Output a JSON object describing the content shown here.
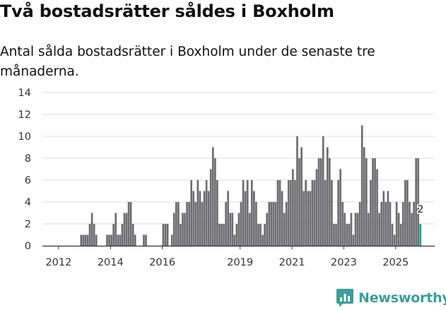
{
  "header": {
    "title": "Två bostadsrätter såldes i Boxholm",
    "subtitle": "Antal sålda bostadsrätter i Boxholm under de senaste tre månaderna."
  },
  "brand": {
    "name": "Newsworthy",
    "logo_icon": "chart-bubble-icon",
    "color": "#3d9c99"
  },
  "colors": {
    "bar": "#6c6b70",
    "highlight": "#1a9e95",
    "grid": "#dddddd",
    "axis": "#333333"
  },
  "chart_data": {
    "type": "bar",
    "title": "Två bostadsrätter såldes i Boxholm",
    "subtitle": "Antal sålda bostadsrätter i Boxholm under de senaste tre månaderna.",
    "xlabel": "",
    "ylabel": "",
    "x_unit": "month",
    "start": "2011-07",
    "ylim": [
      0,
      14
    ],
    "yticks": [
      0,
      2,
      4,
      6,
      8,
      10,
      12,
      14
    ],
    "xticks": [
      {
        "label": "2012",
        "month_index": 7
      },
      {
        "label": "2014",
        "month_index": 31
      },
      {
        "label": "2016",
        "month_index": 55
      },
      {
        "label": "2019",
        "month_index": 91
      },
      {
        "label": "2021",
        "month_index": 115
      },
      {
        "label": "2023",
        "month_index": 139
      },
      {
        "label": "2025",
        "month_index": 163
      }
    ],
    "grid": true,
    "highlight_label": "2",
    "values": [
      0,
      0,
      0,
      0,
      0,
      0,
      0,
      0,
      0,
      0,
      0,
      0,
      0,
      0,
      0,
      0,
      0,
      1,
      1,
      1,
      1,
      2,
      3,
      2,
      1,
      0,
      0,
      0,
      0,
      1,
      1,
      1,
      2,
      3,
      1,
      1,
      2,
      3,
      3,
      4,
      4,
      2,
      1,
      0,
      0,
      0,
      1,
      1,
      0,
      0,
      0,
      0,
      0,
      0,
      0,
      2,
      2,
      2,
      0,
      1,
      3,
      4,
      4,
      2,
      3,
      3,
      4,
      4,
      6,
      5,
      4,
      6,
      5,
      4,
      5,
      6,
      5,
      7,
      9,
      8,
      6,
      2,
      2,
      2,
      4,
      5,
      3,
      3,
      1,
      2,
      3,
      4,
      6,
      5,
      6,
      3,
      6,
      5,
      4,
      2,
      2,
      1,
      2,
      3,
      4,
      4,
      4,
      4,
      6,
      6,
      5,
      3,
      4,
      6,
      6,
      7,
      6,
      10,
      8,
      9,
      5,
      6,
      5,
      5,
      6,
      6,
      7,
      8,
      8,
      10,
      6,
      9,
      8,
      6,
      2,
      2,
      6,
      7,
      4,
      3,
      2,
      2,
      3,
      1,
      3,
      3,
      4,
      11,
      9,
      8,
      3,
      6,
      8,
      8,
      7,
      3,
      4,
      5,
      4,
      5,
      4,
      2,
      1,
      4,
      3,
      2,
      4,
      6,
      6,
      4,
      3,
      4,
      8,
      8,
      2
    ]
  }
}
